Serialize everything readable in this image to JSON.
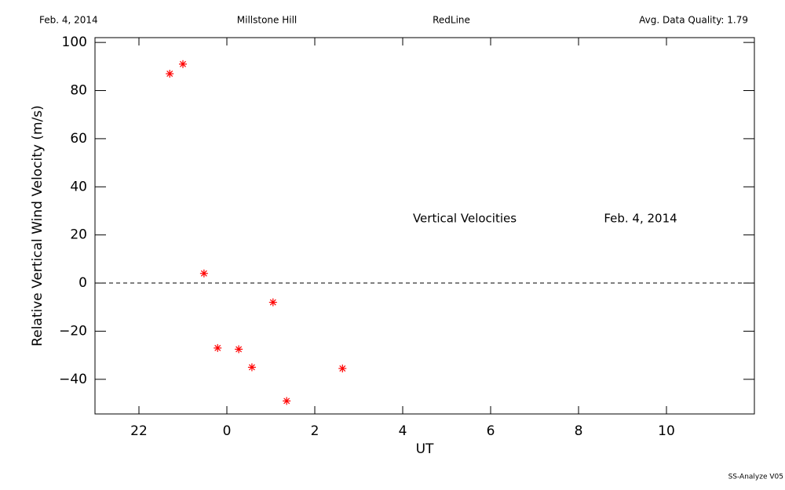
{
  "chart_data": {
    "type": "scatter",
    "header": [
      "Feb. 4, 2014",
      "Millstone Hill",
      "RedLine",
      "Avg. Data Quality: 1.79"
    ],
    "annotations": [
      "Vertical Velocities",
      "Feb. 4, 2014"
    ],
    "x_label": "UT",
    "y_label": "Relative Vertical Wind Velocity (m/s)",
    "footer": "SS-Analyze V05",
    "series": [
      {
        "color": "#ff0000",
        "x": [
          -1.3,
          -1.0,
          -0.52,
          -0.21,
          0.27,
          0.57,
          1.05,
          1.36,
          2.63
        ],
        "values": [
          87,
          91,
          4,
          -27,
          -27.5,
          -35,
          -8,
          -49,
          -35.5
        ]
      }
    ],
    "xlim": [
      -3,
      12
    ],
    "xticks": [
      {
        "value": -2,
        "label": "22"
      },
      0,
      2,
      4,
      6,
      8,
      10
    ],
    "ylim": [
      -54.4,
      102
    ],
    "yticks": [
      {
        "value": -40,
        "label": "−40"
      },
      {
        "value": -20,
        "label": "−20"
      },
      0,
      20,
      40,
      60,
      80,
      100
    ],
    "reference_line": 0
  }
}
